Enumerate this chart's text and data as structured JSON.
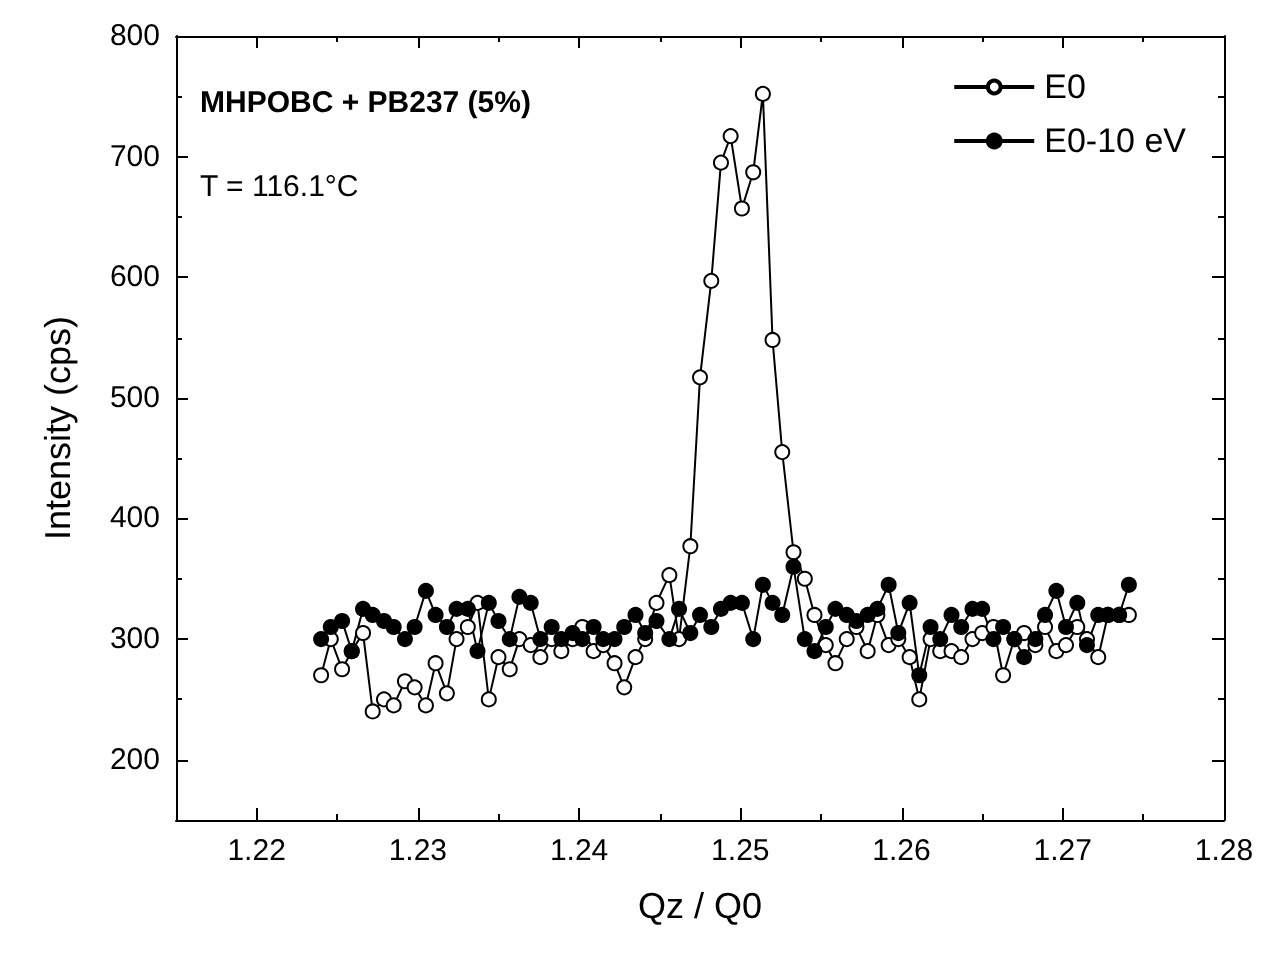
{
  "chart_data": {
    "type": "line",
    "xlabel": "Qz / Q0",
    "ylabel": "Intensity (cps)",
    "annotations": [
      "MHPOBC + PB237 (5%)",
      "T = 116.1°C"
    ],
    "xlim": [
      1.215,
      1.28
    ],
    "xticks": [
      1.22,
      1.23,
      1.24,
      1.25,
      1.26,
      1.27,
      1.28
    ],
    "ylim": [
      150,
      800
    ],
    "yticks": [
      200,
      300,
      400,
      500,
      600,
      700,
      800
    ],
    "grid": false,
    "legend": "top right",
    "line_style": "solid",
    "x": [
      1.224,
      1.2246,
      1.2253,
      1.2259,
      1.2266,
      1.2272,
      1.2279,
      1.2285,
      1.2292,
      1.2298,
      1.2305,
      1.2311,
      1.2318,
      1.2324,
      1.2331,
      1.2337,
      1.2344,
      1.235,
      1.2357,
      1.2363,
      1.237,
      1.2376,
      1.2383,
      1.2389,
      1.2396,
      1.2402,
      1.2409,
      1.2415,
      1.2422,
      1.2428,
      1.2435,
      1.2441,
      1.2448,
      1.2456,
      1.2462,
      1.2469,
      1.2475,
      1.2482,
      1.2488,
      1.2494,
      1.2501,
      1.2508,
      1.2514,
      1.252,
      1.2526,
      1.2533,
      1.254,
      1.2546,
      1.2553,
      1.2559,
      1.2566,
      1.2572,
      1.2579,
      1.2585,
      1.2592,
      1.2598,
      1.2605,
      1.2611,
      1.2618,
      1.2624,
      1.2631,
      1.2637,
      1.2644,
      1.265,
      1.2657,
      1.2663,
      1.267,
      1.2676,
      1.2683,
      1.2689,
      1.2696,
      1.2702,
      1.2709,
      1.2715,
      1.2722,
      1.2728,
      1.2735,
      1.2741
    ],
    "series": [
      {
        "name": "E0",
        "color": "#000000",
        "marker": "circle",
        "values": [
          270,
          300,
          275,
          290,
          305,
          240,
          250,
          245,
          265,
          260,
          245,
          280,
          255,
          300,
          310,
          330,
          250,
          285,
          275,
          300,
          295,
          285,
          300,
          290,
          300,
          310,
          290,
          295,
          280,
          260,
          285,
          300,
          330,
          353,
          300,
          377,
          517,
          597,
          695,
          717,
          657,
          687,
          752,
          548,
          455,
          372,
          350,
          320,
          295,
          280,
          300,
          310,
          290,
          320,
          295,
          300,
          285,
          250,
          300,
          290,
          290,
          285,
          300,
          305,
          310,
          270,
          300,
          305,
          295,
          310,
          290,
          295,
          310,
          300,
          285,
          320,
          320,
          320
        ]
      },
      {
        "name": "E0-10 eV",
        "color": "#000000",
        "marker": "circle",
        "values": [
          300,
          310,
          315,
          290,
          325,
          320,
          315,
          310,
          300,
          310,
          340,
          320,
          310,
          325,
          325,
          290,
          330,
          315,
          300,
          335,
          330,
          300,
          310,
          300,
          305,
          300,
          310,
          300,
          300,
          310,
          320,
          305,
          315,
          300,
          325,
          305,
          320,
          310,
          325,
          330,
          330,
          300,
          345,
          330,
          320,
          360,
          300,
          290,
          310,
          325,
          320,
          315,
          320,
          325,
          345,
          305,
          330,
          270,
          310,
          300,
          320,
          310,
          325,
          325,
          300,
          310,
          300,
          285,
          300,
          320,
          340,
          310,
          330,
          295,
          320,
          320,
          320,
          345
        ]
      }
    ]
  }
}
